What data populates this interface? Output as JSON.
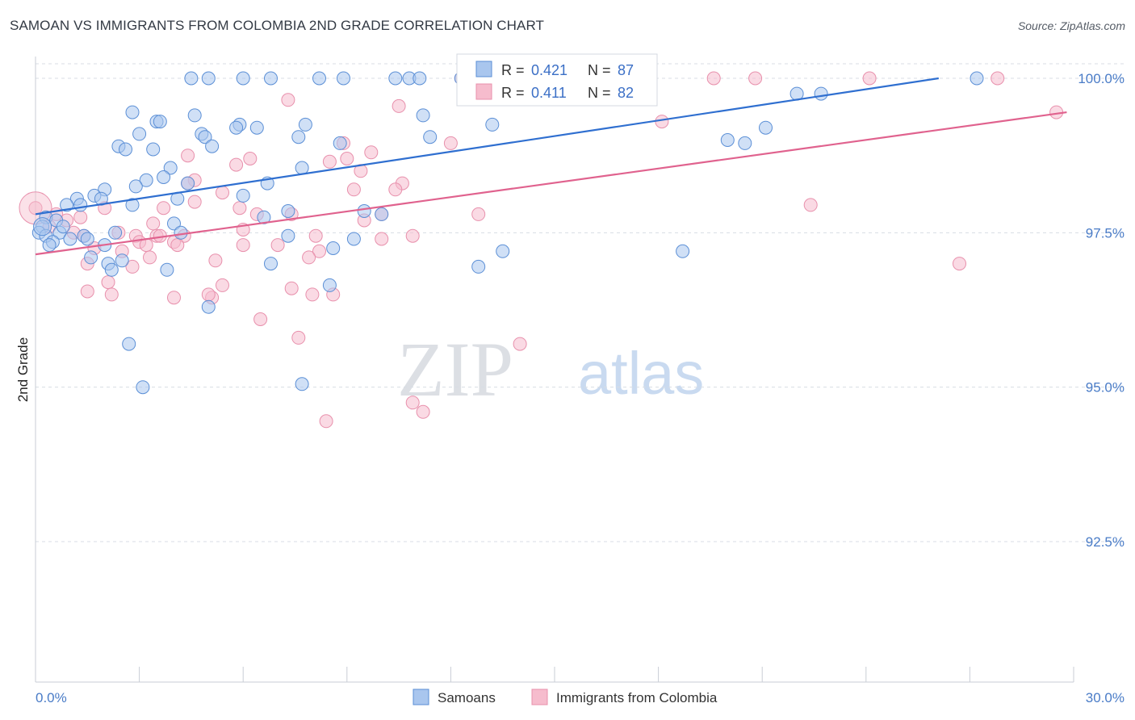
{
  "title": "SAMOAN VS IMMIGRANTS FROM COLOMBIA 2ND GRADE CORRELATION CHART",
  "source": "Source: ZipAtlas.com",
  "watermark": {
    "zip": "ZIP",
    "atlas": "atlas"
  },
  "colors": {
    "blue_fill": "#a9c6ee",
    "blue_stroke": "#5b8fd6",
    "blue_line": "#2f6fd0",
    "pink_fill": "#f6bccd",
    "pink_stroke": "#e890ac",
    "pink_line": "#e0628e",
    "grid": "#d8dde4",
    "tick_text": "#4a7cc7"
  },
  "legend_top": {
    "rows": [
      {
        "r_label": "R = ",
        "r_value": "0.421",
        "n_label": "N = ",
        "n_value": "87",
        "series": "blue"
      },
      {
        "r_label": "R = ",
        "r_value": "0.411",
        "n_label": "N = ",
        "n_value": "82",
        "series": "pink"
      }
    ]
  },
  "legend_bottom": [
    "Samoans",
    "Immigrants from Colombia"
  ],
  "chart_data": {
    "type": "scatter",
    "title": "SAMOAN VS IMMIGRANTS FROM COLOMBIA 2ND GRADE CORRELATION CHART",
    "xlabel": "",
    "ylabel": "2nd Grade",
    "xlim": [
      0,
      30
    ],
    "ylim": [
      90.5,
      100.2
    ],
    "x_tick_labels": [
      "0.0%",
      "30.0%"
    ],
    "y_ticks": [
      92.5,
      95.0,
      97.5,
      100.0
    ],
    "y_tick_labels": [
      "92.5%",
      "95.0%",
      "97.5%",
      "100.0%"
    ],
    "grid": true,
    "series": [
      {
        "name": "Samoans",
        "color": "blue",
        "R": 0.421,
        "N": 87,
        "trend": {
          "x": [
            0,
            26.1
          ],
          "y": [
            97.8,
            100.0
          ]
        },
        "points": [
          [
            4.5,
            100
          ],
          [
            5.0,
            100
          ],
          [
            6.0,
            100
          ],
          [
            6.8,
            100
          ],
          [
            8.2,
            100
          ],
          [
            8.9,
            100
          ],
          [
            10.4,
            100
          ],
          [
            10.8,
            100
          ],
          [
            11.1,
            100
          ],
          [
            12.3,
            100
          ],
          [
            27.2,
            100
          ],
          [
            22.0,
            99.75
          ],
          [
            22.7,
            99.75
          ],
          [
            2.8,
            99.45
          ],
          [
            4.6,
            99.4
          ],
          [
            11.2,
            99.4
          ],
          [
            3.5,
            99.3
          ],
          [
            3.6,
            99.3
          ],
          [
            5.9,
            99.25
          ],
          [
            7.8,
            99.25
          ],
          [
            6.4,
            99.2
          ],
          [
            5.8,
            99.2
          ],
          [
            13.2,
            99.25
          ],
          [
            21.1,
            99.2
          ],
          [
            3.0,
            99.1
          ],
          [
            4.8,
            99.1
          ],
          [
            4.9,
            99.05
          ],
          [
            7.6,
            99.05
          ],
          [
            11.4,
            99.05
          ],
          [
            20.0,
            99.0
          ],
          [
            8.8,
            98.95
          ],
          [
            20.5,
            98.95
          ],
          [
            2.4,
            98.9
          ],
          [
            5.1,
            98.9
          ],
          [
            2.6,
            98.85
          ],
          [
            3.4,
            98.85
          ],
          [
            3.9,
            98.55
          ],
          [
            7.7,
            98.55
          ],
          [
            3.7,
            98.4
          ],
          [
            3.2,
            98.35
          ],
          [
            2.9,
            98.25
          ],
          [
            4.4,
            98.3
          ],
          [
            6.7,
            98.3
          ],
          [
            2.0,
            98.2
          ],
          [
            1.7,
            98.1
          ],
          [
            1.2,
            98.05
          ],
          [
            1.9,
            98.05
          ],
          [
            6.0,
            98.1
          ],
          [
            0.9,
            97.95
          ],
          [
            1.3,
            97.95
          ],
          [
            4.1,
            98.05
          ],
          [
            7.3,
            97.85
          ],
          [
            10.0,
            97.8
          ],
          [
            0.3,
            97.75
          ],
          [
            6.6,
            97.75
          ],
          [
            0.2,
            97.6
          ],
          [
            4.0,
            97.65
          ],
          [
            0.6,
            97.7
          ],
          [
            0.1,
            97.5
          ],
          [
            0.3,
            97.45
          ],
          [
            0.7,
            97.5
          ],
          [
            1.4,
            97.45
          ],
          [
            2.3,
            97.5
          ],
          [
            4.2,
            97.5
          ],
          [
            0.5,
            97.35
          ],
          [
            1.0,
            97.4
          ],
          [
            7.3,
            97.45
          ],
          [
            9.2,
            97.4
          ],
          [
            0.4,
            97.3
          ],
          [
            2.0,
            97.3
          ],
          [
            8.6,
            97.25
          ],
          [
            18.7,
            97.2
          ],
          [
            1.6,
            97.1
          ],
          [
            2.5,
            97.05
          ],
          [
            2.1,
            97.0
          ],
          [
            6.8,
            97.0
          ],
          [
            12.8,
            96.95
          ],
          [
            2.2,
            96.9
          ],
          [
            3.8,
            96.9
          ],
          [
            8.5,
            96.65
          ],
          [
            5.0,
            96.3
          ],
          [
            2.7,
            95.7
          ],
          [
            3.1,
            95.0
          ],
          [
            7.7,
            95.05
          ],
          [
            9.5,
            97.85
          ],
          [
            2.8,
            97.95
          ],
          [
            1.5,
            97.4
          ],
          [
            13.5,
            97.2
          ],
          [
            0.8,
            97.6
          ]
        ]
      },
      {
        "name": "Immigrants from Colombia",
        "color": "pink",
        "R": 0.411,
        "N": 82,
        "trend": {
          "x": [
            0,
            29.8
          ],
          "y": [
            97.15,
            99.45
          ]
        },
        "points": [
          [
            12.3,
            100
          ],
          [
            19.6,
            100
          ],
          [
            20.8,
            100
          ],
          [
            24.1,
            100
          ],
          [
            27.8,
            100
          ],
          [
            7.3,
            99.65
          ],
          [
            10.5,
            99.55
          ],
          [
            29.5,
            99.45
          ],
          [
            18.1,
            99.3
          ],
          [
            8.9,
            98.95
          ],
          [
            12.0,
            98.95
          ],
          [
            4.4,
            98.75
          ],
          [
            6.2,
            98.7
          ],
          [
            9.0,
            98.7
          ],
          [
            8.5,
            98.65
          ],
          [
            5.8,
            98.6
          ],
          [
            9.4,
            98.5
          ],
          [
            4.6,
            98.35
          ],
          [
            4.4,
            98.3
          ],
          [
            10.6,
            98.3
          ],
          [
            9.2,
            98.2
          ],
          [
            10.4,
            98.2
          ],
          [
            5.4,
            98.15
          ],
          [
            4.6,
            98.0
          ],
          [
            2.0,
            97.9
          ],
          [
            0.0,
            97.9
          ],
          [
            0.6,
            97.8
          ],
          [
            3.7,
            97.9
          ],
          [
            5.9,
            97.9
          ],
          [
            6.4,
            97.8
          ],
          [
            7.4,
            97.8
          ],
          [
            10.0,
            97.8
          ],
          [
            12.8,
            97.8
          ],
          [
            22.4,
            97.95
          ],
          [
            1.3,
            97.75
          ],
          [
            0.9,
            97.7
          ],
          [
            3.4,
            97.65
          ],
          [
            9.5,
            97.7
          ],
          [
            6.0,
            97.55
          ],
          [
            1.1,
            97.5
          ],
          [
            1.4,
            97.45
          ],
          [
            2.4,
            97.5
          ],
          [
            2.9,
            97.45
          ],
          [
            3.5,
            97.45
          ],
          [
            4.3,
            97.45
          ],
          [
            4.0,
            97.35
          ],
          [
            3.0,
            97.35
          ],
          [
            3.2,
            97.3
          ],
          [
            4.1,
            97.3
          ],
          [
            1.7,
            97.25
          ],
          [
            2.5,
            97.2
          ],
          [
            7.0,
            97.3
          ],
          [
            8.2,
            97.2
          ],
          [
            10.0,
            97.4
          ],
          [
            7.9,
            97.1
          ],
          [
            3.3,
            97.1
          ],
          [
            1.5,
            97.0
          ],
          [
            2.8,
            96.95
          ],
          [
            26.7,
            97.0
          ],
          [
            2.1,
            96.7
          ],
          [
            5.4,
            96.65
          ],
          [
            7.4,
            96.6
          ],
          [
            1.5,
            96.55
          ],
          [
            2.2,
            96.5
          ],
          [
            4.0,
            96.45
          ],
          [
            5.1,
            96.45
          ],
          [
            5.0,
            96.5
          ],
          [
            8.0,
            96.5
          ],
          [
            8.6,
            96.5
          ],
          [
            6.5,
            96.1
          ],
          [
            7.6,
            95.8
          ],
          [
            14.0,
            95.7
          ],
          [
            10.9,
            94.75
          ],
          [
            11.2,
            94.6
          ],
          [
            8.4,
            94.45
          ],
          [
            10.9,
            97.45
          ],
          [
            9.7,
            98.8
          ],
          [
            0.4,
            97.6
          ],
          [
            3.6,
            97.45
          ],
          [
            8.1,
            97.45
          ],
          [
            6.0,
            97.3
          ],
          [
            5.2,
            97.05
          ]
        ]
      }
    ]
  }
}
